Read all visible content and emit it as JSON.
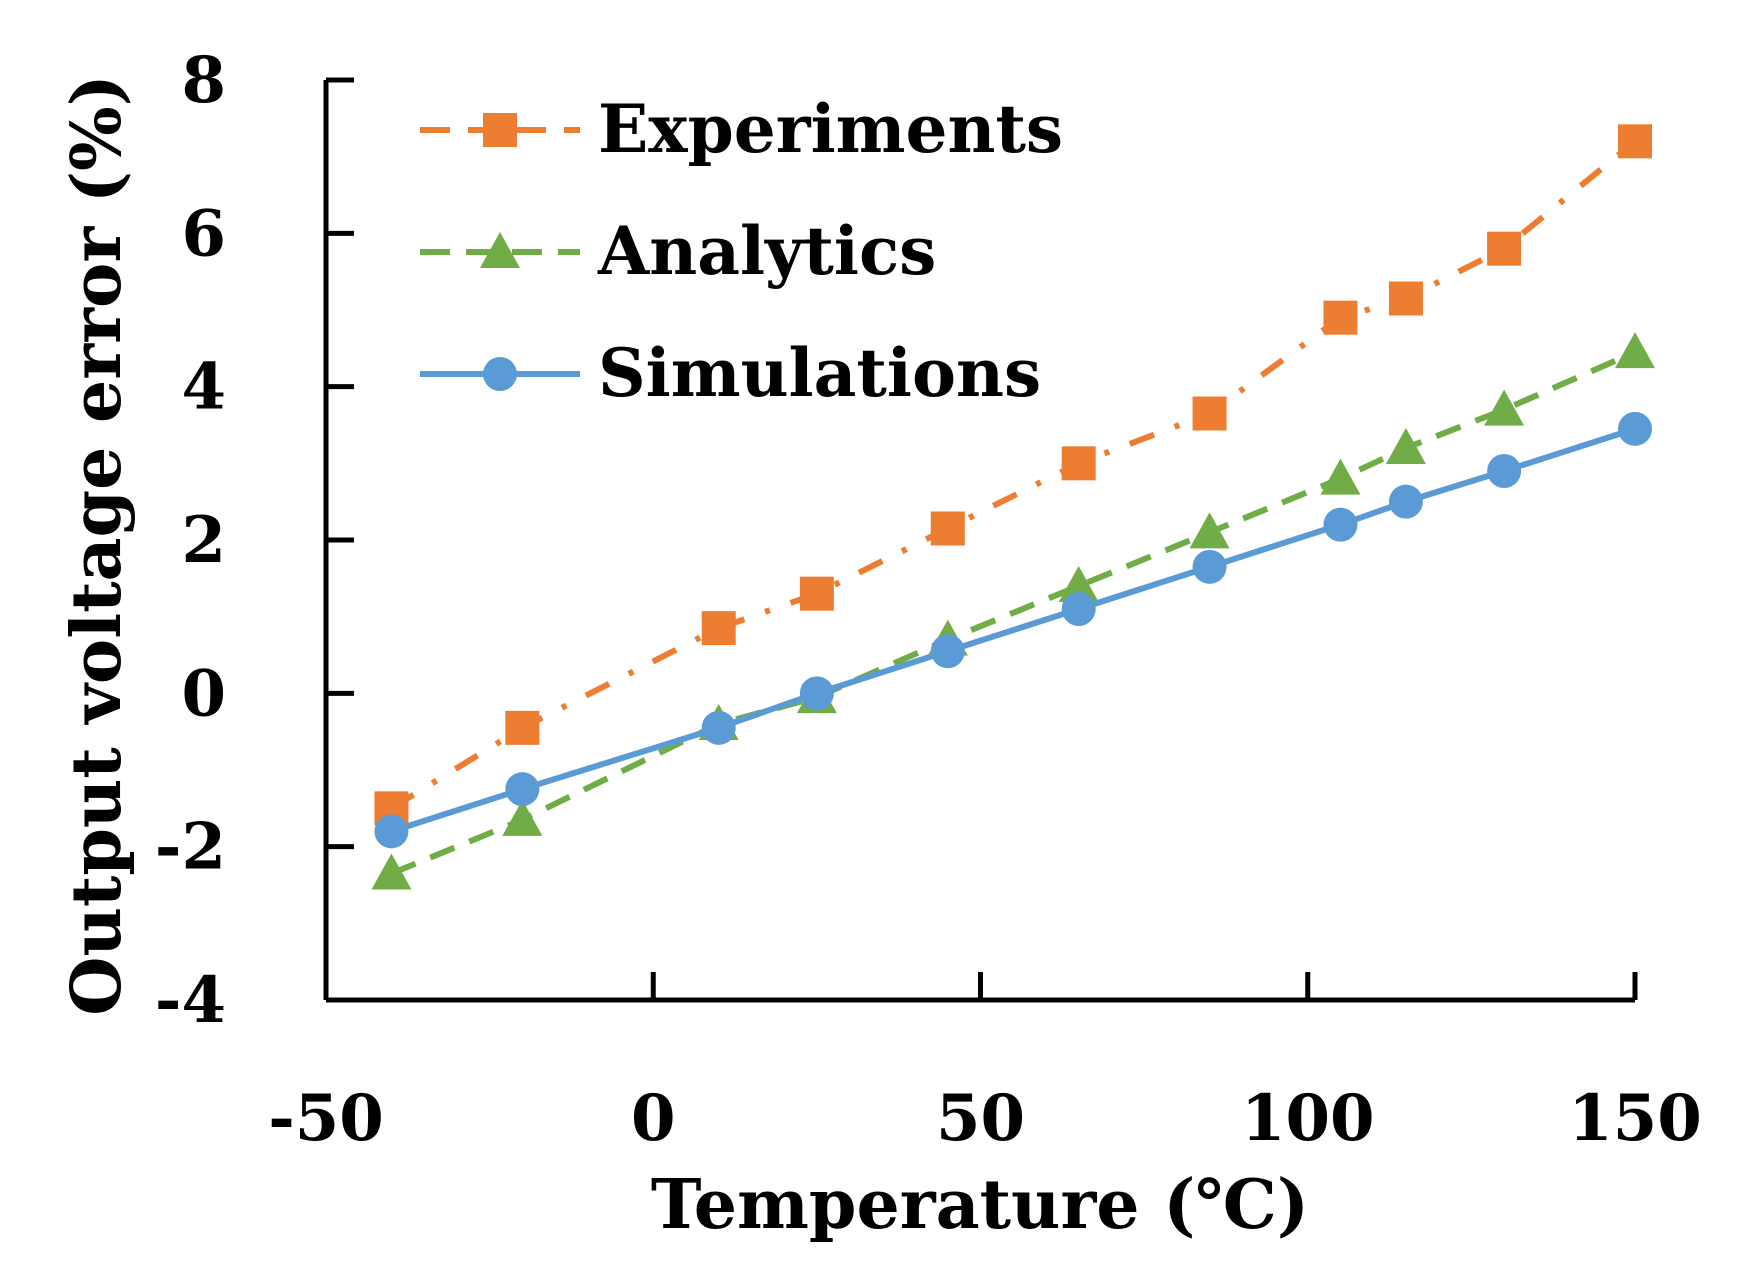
{
  "chart_data": {
    "type": "line",
    "title": "",
    "xlabel": "Temperature (℃)",
    "ylabel": "Output voltage error (%)",
    "xlim": [
      -50,
      150
    ],
    "ylim": [
      -4,
      8
    ],
    "xticks": [
      "-50",
      "0",
      "50",
      "100",
      "150"
    ],
    "yticks": [
      "-4",
      "-2",
      "0",
      "2",
      "4",
      "6",
      "8"
    ],
    "grid": false,
    "legend_position": "top-left",
    "x": [
      -40,
      -20,
      10,
      25,
      45,
      65,
      85,
      105,
      115,
      130,
      150
    ],
    "series": [
      {
        "name": "Experiments",
        "values": [
          -1.5,
          -0.45,
          0.85,
          1.3,
          2.15,
          3.0,
          3.65,
          4.9,
          5.15,
          5.8,
          7.2
        ],
        "color": "#ED7D31",
        "marker": "square",
        "line_style": "dash-dot"
      },
      {
        "name": "Analytics",
        "values": [
          -2.35,
          -1.65,
          -0.4,
          -0.05,
          0.7,
          1.4,
          2.1,
          2.8,
          3.2,
          3.7,
          4.45
        ],
        "color": "#70AD47",
        "marker": "triangle",
        "line_style": "dashed"
      },
      {
        "name": "Simulations",
        "values": [
          -1.8,
          -1.25,
          -0.45,
          0.0,
          0.55,
          1.1,
          1.65,
          2.2,
          2.5,
          2.9,
          3.45
        ],
        "color": "#5B9BD5",
        "marker": "circle",
        "line_style": "solid"
      }
    ]
  }
}
